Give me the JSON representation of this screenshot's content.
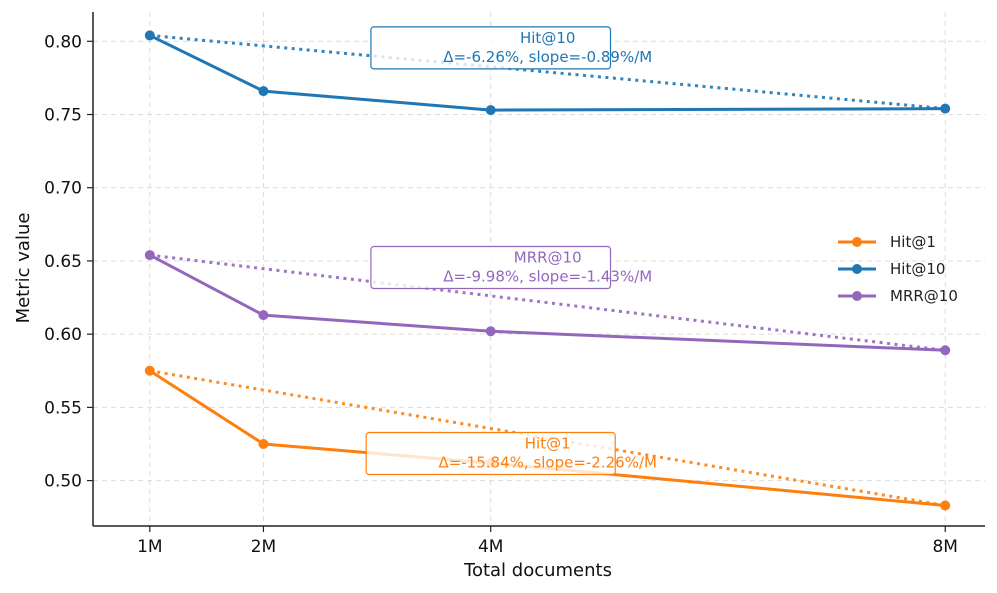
{
  "chart_data": {
    "type": "line",
    "title": "",
    "xlabel": "Total documents",
    "ylabel": "Metric value",
    "x": [
      1,
      2,
      4,
      8
    ],
    "x_tick_labels": [
      "1M",
      "2M",
      "4M",
      "8M"
    ],
    "xlim": [
      0.5,
      8.35
    ],
    "ylim": [
      0.469,
      0.82
    ],
    "y_ticks": [
      0.5,
      0.55,
      0.6,
      0.65,
      0.7,
      0.75,
      0.8
    ],
    "y_tick_labels": [
      "0.50",
      "0.55",
      "0.60",
      "0.65",
      "0.70",
      "0.75",
      "0.80"
    ],
    "grid": true,
    "legend_position": "center-right",
    "series": [
      {
        "name": "Hit@1",
        "color": "#ff7f0e",
        "values": [
          0.575,
          0.525,
          0.512,
          0.483
        ],
        "annotation": {
          "line1": "Hit@1",
          "line2": "Δ=-15.84%, slope=-2.26%/M",
          "x": 4,
          "y": 0.5185
        }
      },
      {
        "name": "Hit@10",
        "color": "#1f77b4",
        "values": [
          0.804,
          0.766,
          0.753,
          0.754
        ],
        "annotation": {
          "line1": "Hit@10",
          "line2": "Δ=-6.26%, slope=-0.89%/M",
          "x": 4,
          "y": 0.7955
        }
      },
      {
        "name": "MRR@10",
        "color": "#9467bd",
        "values": [
          0.654,
          0.613,
          0.602,
          0.589
        ],
        "annotation": {
          "line1": "MRR@10",
          "line2": "Δ=-9.98%, slope=-1.43%/M",
          "x": 4,
          "y": 0.6455
        }
      }
    ]
  }
}
